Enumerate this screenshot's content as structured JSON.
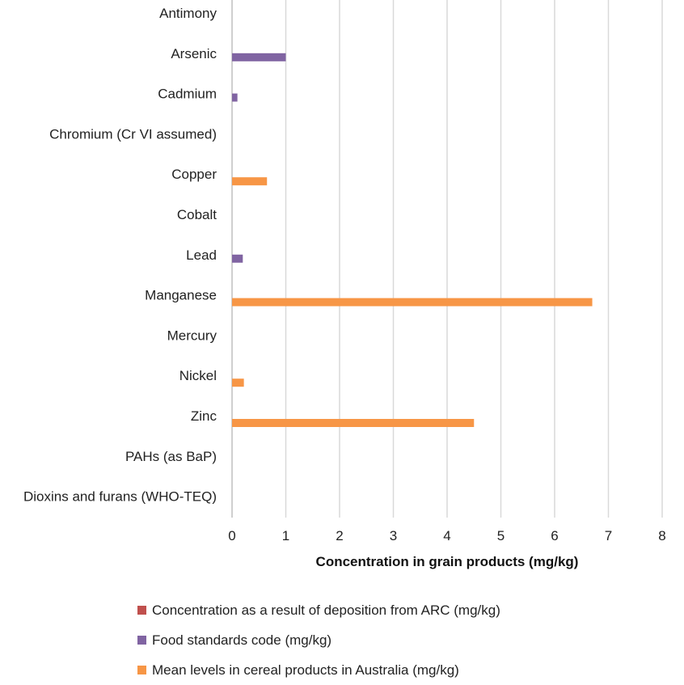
{
  "chart_data": {
    "type": "bar",
    "orientation": "horizontal",
    "categories": [
      "Antimony",
      "Arsenic",
      "Cadmium",
      "Chromium (Cr VI assumed)",
      "Copper",
      "Cobalt",
      "Lead",
      "Manganese",
      "Mercury",
      "Nickel",
      "Zinc",
      "PAHs (as BaP)",
      "Dioxins and furans (WHO-TEQ)"
    ],
    "series": [
      {
        "name": "Concentration as a result of deposition from ARC (mg/kg)",
        "color": "#C0504D",
        "values": [
          0,
          0,
          0,
          0,
          0,
          0,
          0,
          0,
          0,
          0,
          0,
          0,
          0
        ]
      },
      {
        "name": "Food standards code (mg/kg)",
        "color": "#8064A2",
        "values": [
          null,
          1,
          0.1,
          null,
          null,
          null,
          0.2,
          null,
          null,
          null,
          null,
          null,
          null
        ]
      },
      {
        "name": "Mean levels in cereal products in Australia (mg/kg)",
        "color": "#F79646",
        "values": [
          null,
          null,
          null,
          null,
          0.65,
          null,
          null,
          6.7,
          null,
          0.22,
          4.5,
          null,
          null
        ]
      }
    ],
    "xlabel": "Concentration in grain products (mg/kg)",
    "xlim": [
      0,
      8
    ],
    "xticks": [
      "0",
      "1",
      "2",
      "3",
      "4",
      "5",
      "6",
      "7",
      "8"
    ],
    "grid": true,
    "legend_position": "bottom"
  }
}
